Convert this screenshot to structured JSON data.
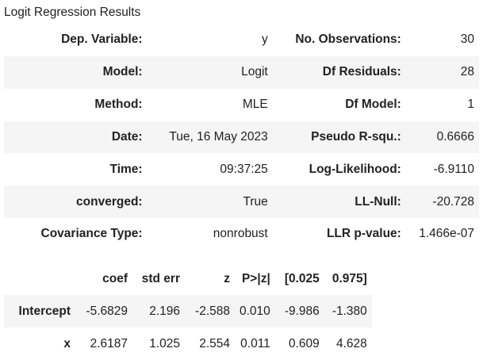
{
  "caption": "Logit Regression Results",
  "summary_rows": [
    {
      "label1": "Dep. Variable:",
      "value1": "y",
      "label2": "No. Observations:",
      "value2": "30"
    },
    {
      "label1": "Model:",
      "value1": "Logit",
      "label2": "Df Residuals:",
      "value2": "28"
    },
    {
      "label1": "Method:",
      "value1": "MLE",
      "label2": "Df Model:",
      "value2": "1"
    },
    {
      "label1": "Date:",
      "value1": "Tue, 16 May 2023",
      "label2": "Pseudo R-squ.:",
      "value2": "0.6666"
    },
    {
      "label1": "Time:",
      "value1": "09:37:25",
      "label2": "Log-Likelihood:",
      "value2": "-6.9110"
    },
    {
      "label1": "converged:",
      "value1": "True",
      "label2": "LL-Null:",
      "value2": "-20.728"
    },
    {
      "label1": "Covariance Type:",
      "value1": "nonrobust",
      "label2": "LLR p-value:",
      "value2": "1.466e-07"
    }
  ],
  "coef_headers": [
    "",
    "coef",
    "std err",
    "z",
    "P>|z|",
    "[0.025",
    "0.975]"
  ],
  "coef_rows": [
    {
      "name": "Intercept",
      "values": [
        "-5.6829",
        "2.196",
        "-2.588",
        "0.010",
        "-9.986",
        "-1.380"
      ]
    },
    {
      "name": "x",
      "values": [
        "2.6187",
        "1.025",
        "2.554",
        "0.011",
        "0.609",
        "4.628"
      ]
    }
  ]
}
